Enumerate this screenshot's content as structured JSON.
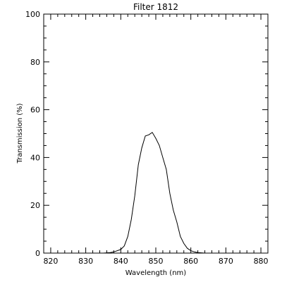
{
  "chart_data": {
    "type": "line",
    "title": "Filter 1812",
    "xlabel": "Wavelength (nm)",
    "ylabel": "Transmission (%)",
    "xlim": [
      818,
      882
    ],
    "ylim": [
      0,
      100
    ],
    "x_ticks": [
      820,
      830,
      840,
      850,
      860,
      870,
      880
    ],
    "y_ticks": [
      0,
      20,
      40,
      60,
      80,
      100
    ],
    "x_tick_labels": [
      "820",
      "830",
      "840",
      "850",
      "860",
      "870",
      "880"
    ],
    "y_tick_labels": [
      "0",
      "20",
      "40",
      "60",
      "80",
      "100"
    ],
    "grid": false,
    "series": [
      {
        "color": "#000000",
        "x": [
          833,
          835,
          837,
          838,
          840,
          841,
          842,
          843,
          844,
          845,
          846,
          847,
          848,
          849,
          850,
          851,
          852,
          853,
          854,
          855,
          856,
          857,
          858,
          859,
          860,
          861,
          862,
          864,
          866,
          868,
          870,
          872,
          874,
          876,
          878
        ],
        "y": [
          0,
          0,
          0.2,
          0.5,
          1.5,
          3,
          7,
          14,
          24,
          37,
          44,
          49,
          49.5,
          50.5,
          48,
          45,
          40,
          35,
          25,
          18,
          13,
          7,
          4,
          2,
          1,
          0.5,
          0.2,
          0,
          0,
          0,
          0,
          0,
          0,
          0,
          0
        ]
      }
    ]
  }
}
